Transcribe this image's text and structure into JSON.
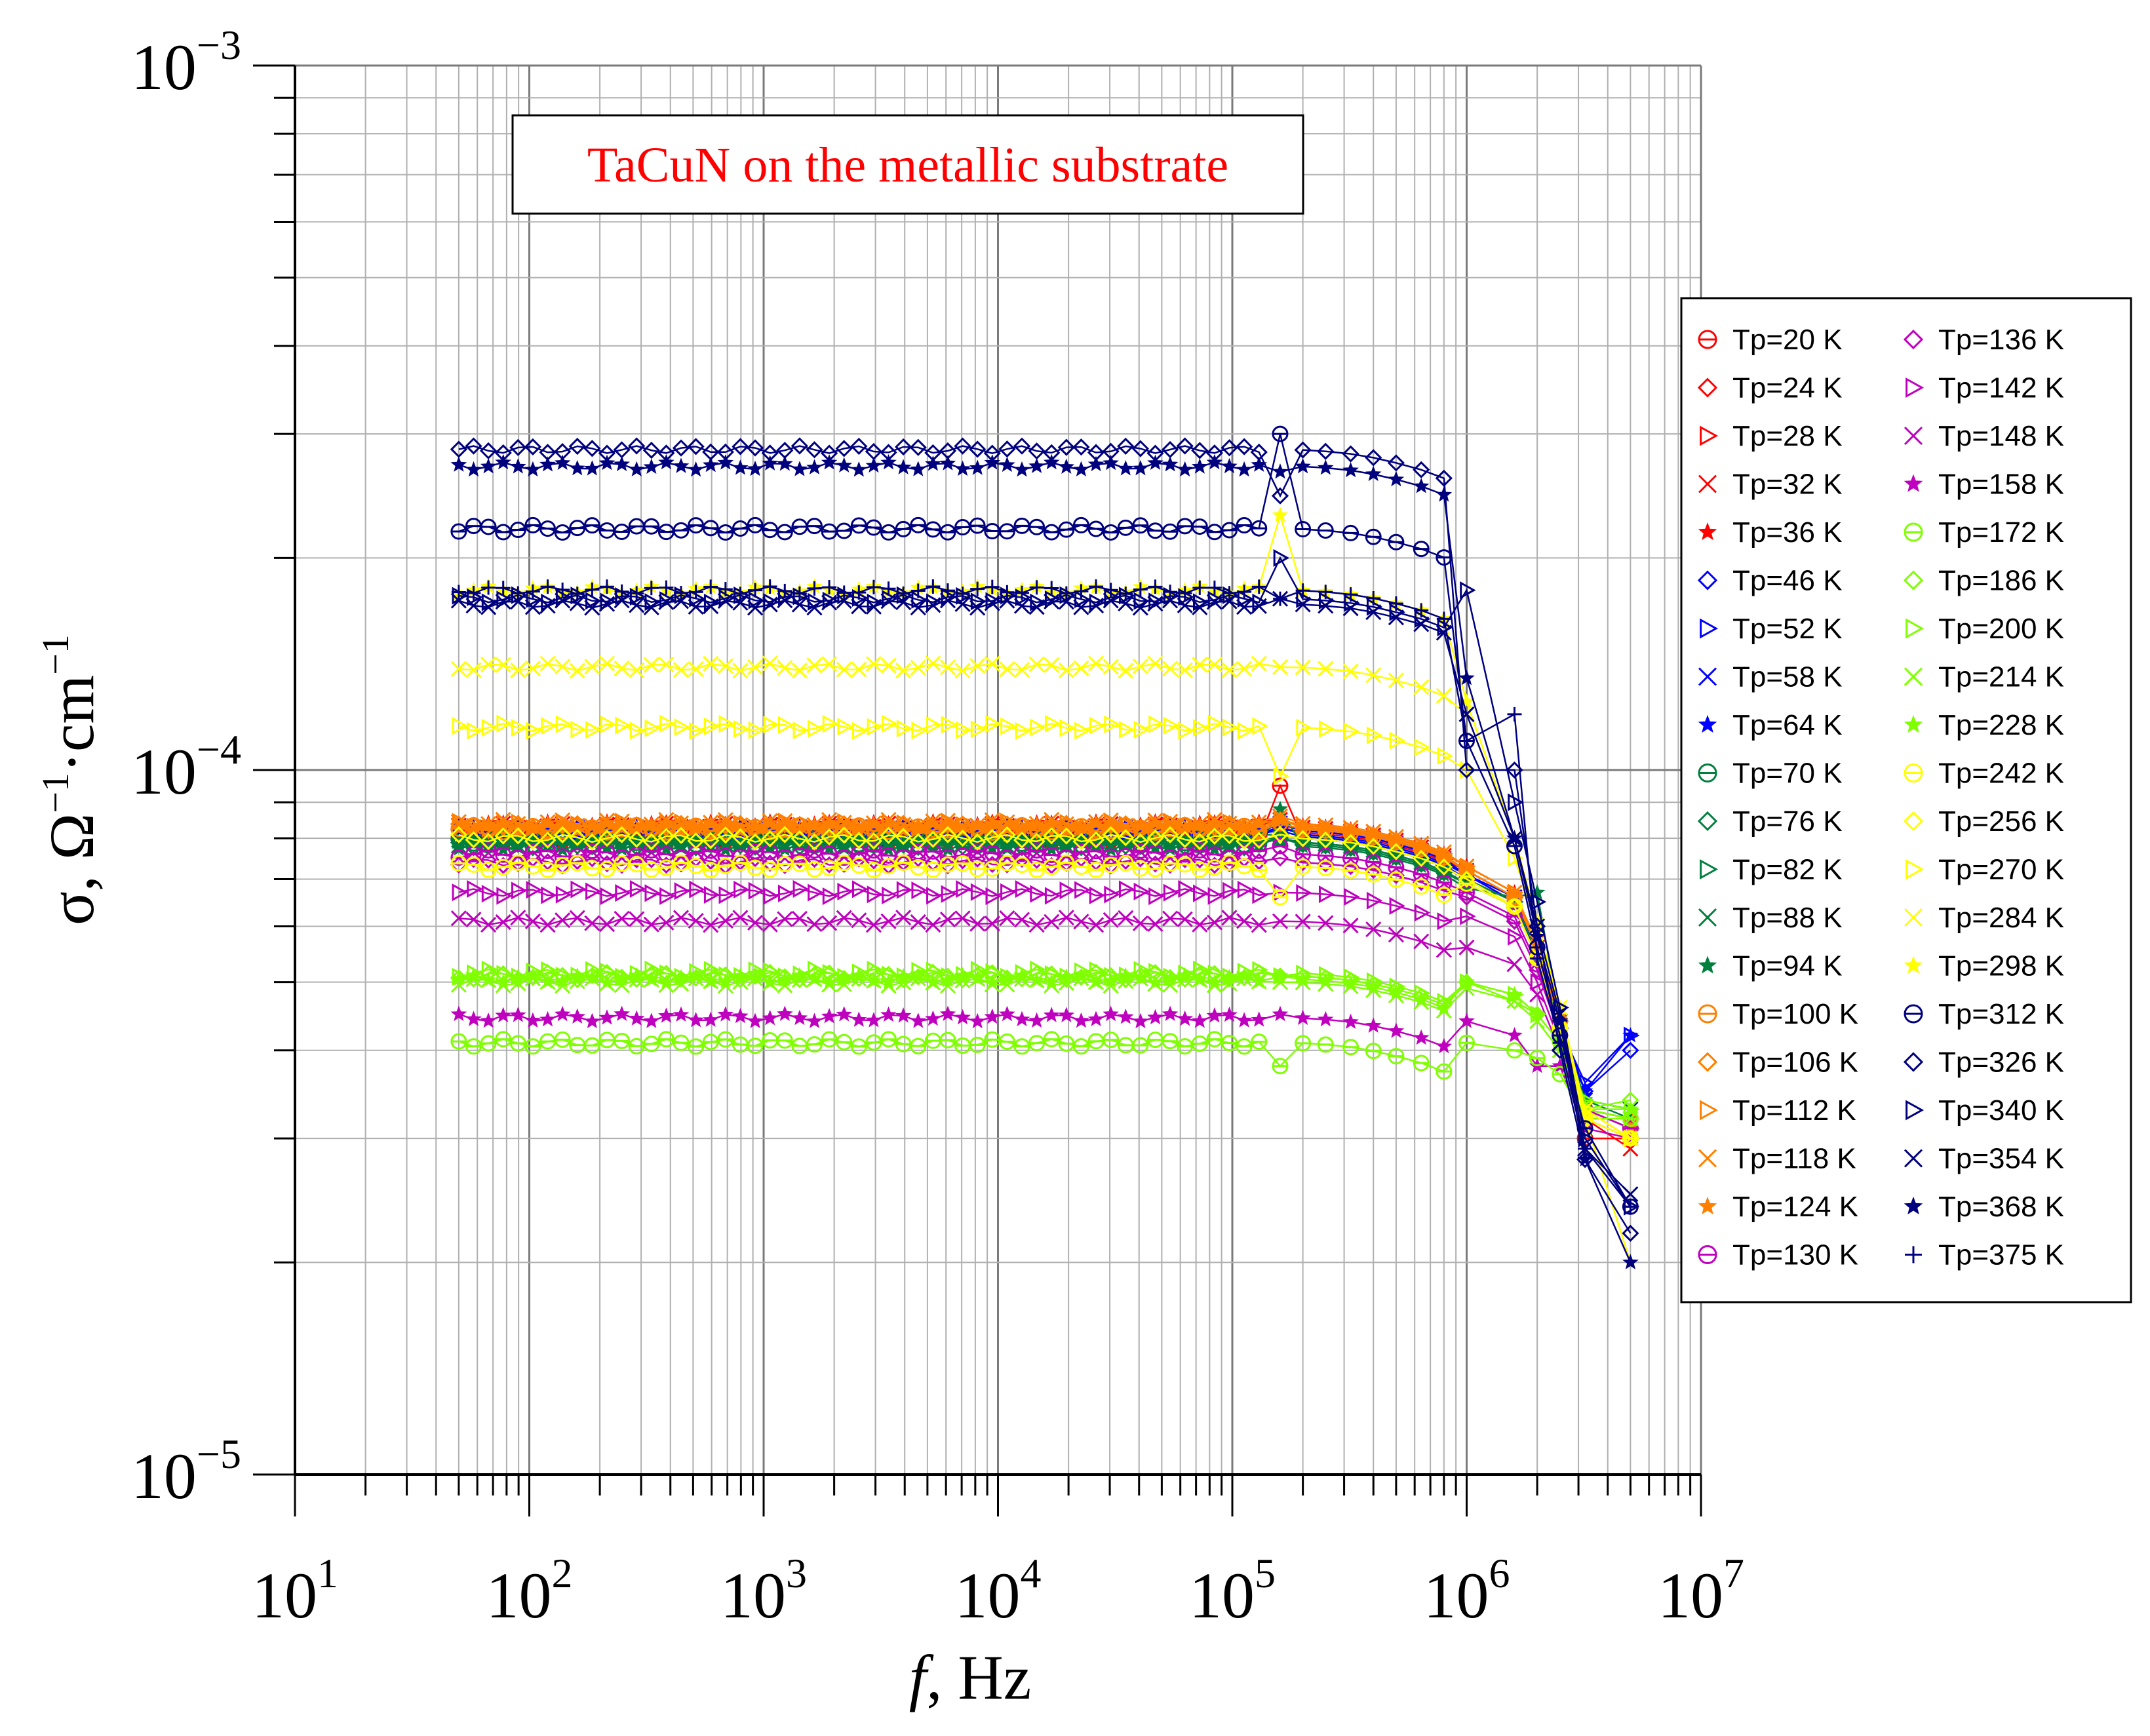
{
  "chart_data": {
    "type": "line",
    "title": "",
    "annotation": "TaCuN on the metallic substrate",
    "annotation_color": "#ff0000",
    "xlabel_italic": "f",
    "xlabel_rest": ", Hz",
    "ylabel_prefix": "σ, Ω",
    "ylabel_exp1": "−1",
    "ylabel_mid": "·cm",
    "ylabel_exp2": "−1",
    "x_scale": "log",
    "y_scale": "log",
    "xlim": [
      10,
      10000000
    ],
    "ylim": [
      1e-05,
      0.001
    ],
    "grid": true,
    "legend_position": "right",
    "legend_columns": 2,
    "x_ticks": [
      {
        "value": 10,
        "base": "10",
        "exp": "1"
      },
      {
        "value": 100,
        "base": "10",
        "exp": "2"
      },
      {
        "value": 1000,
        "base": "10",
        "exp": "3"
      },
      {
        "value": 10000,
        "base": "10",
        "exp": "4"
      },
      {
        "value": 100000,
        "base": "10",
        "exp": "5"
      },
      {
        "value": 1000000,
        "base": "10",
        "exp": "6"
      },
      {
        "value": 10000000,
        "base": "10",
        "exp": "7"
      }
    ],
    "y_ticks": [
      {
        "value": 1e-05,
        "base": "10",
        "exp": "−5"
      },
      {
        "value": 0.0001,
        "base": "10",
        "exp": "−4"
      },
      {
        "value": 0.001,
        "base": "10",
        "exp": "−3"
      }
    ],
    "series": [
      {
        "name": "Tp=20 K",
        "color": "#ff0000",
        "marker": "circle-line",
        "plateau": 8e-05,
        "resonance": 9.5e-05,
        "tail": [
          7e-05,
          6.4e-05,
          5.4e-05,
          4.2e-05,
          3e-05,
          3e-05
        ]
      },
      {
        "name": "Tp=24 K",
        "color": "#ff0000",
        "marker": "diamond",
        "plateau": 8.15e-05,
        "resonance": 8.3e-05,
        "tail": [
          7.1e-05,
          6.5e-05,
          5.5e-05,
          4.2e-05,
          3.2e-05,
          3e-05
        ]
      },
      {
        "name": "Tp=28 K",
        "color": "#ff0000",
        "marker": "triangle-right",
        "plateau": 8.2e-05,
        "resonance": 8.4e-05,
        "tail": [
          7.2e-05,
          6.6e-05,
          5.5e-05,
          4.3e-05,
          3.3e-05,
          3.1e-05
        ]
      },
      {
        "name": "Tp=32 K",
        "color": "#ff0000",
        "marker": "x",
        "plateau": 8.3e-05,
        "resonance": 8.5e-05,
        "tail": [
          7.2e-05,
          6.6e-05,
          5.6e-05,
          4.4e-05,
          3.2e-05,
          2.9e-05
        ]
      },
      {
        "name": "Tp=36 K",
        "color": "#ff0000",
        "marker": "star",
        "plateau": 8.35e-05,
        "resonance": 8.5e-05,
        "tail": [
          7.3e-05,
          6.7e-05,
          5.6e-05,
          4.4e-05,
          3.3e-05,
          3.2e-05
        ]
      },
      {
        "name": "Tp=46 K",
        "color": "#0000ff",
        "marker": "diamond",
        "plateau": 8.05e-05,
        "resonance": 8.2e-05,
        "tail": [
          7e-05,
          6.5e-05,
          5.4e-05,
          4.3e-05,
          3.5e-05,
          4e-05
        ]
      },
      {
        "name": "Tp=52 K",
        "color": "#0000ff",
        "marker": "triangle-right",
        "plateau": 8.1e-05,
        "resonance": 8.3e-05,
        "tail": [
          7.1e-05,
          6.5e-05,
          5.5e-05,
          4.3e-05,
          3.6e-05,
          4.2e-05
        ]
      },
      {
        "name": "Tp=58 K",
        "color": "#0000ff",
        "marker": "x",
        "plateau": 8.2e-05,
        "resonance": 8.4e-05,
        "tail": [
          7.1e-05,
          6.6e-05,
          5.5e-05,
          4.4e-05,
          3.4e-05,
          3.3e-05
        ]
      },
      {
        "name": "Tp=64 K",
        "color": "#0000ff",
        "marker": "star",
        "plateau": 8.25e-05,
        "resonance": 8.4e-05,
        "tail": [
          7.2e-05,
          6.6e-05,
          5.6e-05,
          4.4e-05,
          3.5e-05,
          4.2e-05
        ]
      },
      {
        "name": "Tp=70 K",
        "color": "#007f3f",
        "marker": "circle-line",
        "plateau": 7.9e-05,
        "resonance": 8e-05,
        "tail": [
          6.9e-05,
          6.4e-05,
          5.4e-05,
          4.3e-05,
          3.3e-05,
          3.1e-05
        ]
      },
      {
        "name": "Tp=76 K",
        "color": "#007f3f",
        "marker": "diamond",
        "plateau": 7.85e-05,
        "resonance": 8e-05,
        "tail": [
          6.9e-05,
          6.4e-05,
          5.4e-05,
          4.3e-05,
          3.3e-05,
          3.2e-05
        ]
      },
      {
        "name": "Tp=82 K",
        "color": "#007f3f",
        "marker": "triangle-right",
        "plateau": 8e-05,
        "resonance": 8.1e-05,
        "tail": [
          7e-05,
          6.5e-05,
          5.5e-05,
          4.3e-05,
          3.4e-05,
          3.3e-05
        ]
      },
      {
        "name": "Tp=88 K",
        "color": "#007f3f",
        "marker": "x",
        "plateau": 7.9e-05,
        "resonance": 8e-05,
        "tail": [
          6.9e-05,
          6.4e-05,
          5.4e-05,
          4.3e-05,
          3.3e-05,
          3.1e-05
        ]
      },
      {
        "name": "Tp=94 K",
        "color": "#007f3f",
        "marker": "star",
        "plateau": 7.8e-05,
        "resonance": 8.8e-05,
        "tail": [
          6.8e-05,
          6.6e-05,
          6.7e-05,
          4.4e-05,
          3.4e-05,
          3.2e-05
        ]
      },
      {
        "name": "Tp=100 K",
        "color": "#ff7f00",
        "marker": "circle-line",
        "plateau": 8.25e-05,
        "resonance": 8.4e-05,
        "tail": [
          7.2e-05,
          6.6e-05,
          5.6e-05,
          4.4e-05,
          3.3e-05,
          3.1e-05
        ]
      },
      {
        "name": "Tp=106 K",
        "color": "#ff7f00",
        "marker": "diamond",
        "plateau": 8.3e-05,
        "resonance": 8.5e-05,
        "tail": [
          7.2e-05,
          6.6e-05,
          5.6e-05,
          4.4e-05,
          3.3e-05,
          3.2e-05
        ]
      },
      {
        "name": "Tp=112 K",
        "color": "#ff7f00",
        "marker": "triangle-right",
        "plateau": 8.35e-05,
        "resonance": 8.5e-05,
        "tail": [
          7.3e-05,
          6.7e-05,
          5.6e-05,
          4.4e-05,
          3.3e-05,
          3e-05
        ]
      },
      {
        "name": "Tp=118 K",
        "color": "#ff7f00",
        "marker": "x",
        "plateau": 8.4e-05,
        "resonance": 8.6e-05,
        "tail": [
          7.3e-05,
          6.7e-05,
          5.7e-05,
          4.5e-05,
          3.3e-05,
          3.2e-05
        ]
      },
      {
        "name": "Tp=124 K",
        "color": "#ff7f00",
        "marker": "star",
        "plateau": 8.3e-05,
        "resonance": 8.5e-05,
        "tail": [
          7.2e-05,
          6.6e-05,
          5.6e-05,
          4.4e-05,
          3.3e-05,
          3.1e-05
        ]
      },
      {
        "name": "Tp=130 K",
        "color": "#bf00bf",
        "marker": "circle-line",
        "plateau": 7.6e-05,
        "resonance": 7.8e-05,
        "tail": [
          6.7e-05,
          6.2e-05,
          5.3e-05,
          4.2e-05,
          3.3e-05,
          3.1e-05
        ]
      },
      {
        "name": "Tp=136 K",
        "color": "#bf00bf",
        "marker": "diamond",
        "plateau": 7.4e-05,
        "resonance": 7.5e-05,
        "tail": [
          6.6e-05,
          6.1e-05,
          5.2e-05,
          4.2e-05,
          3.3e-05,
          3e-05
        ]
      },
      {
        "name": "Tp=142 K",
        "color": "#bf00bf",
        "marker": "triangle-right",
        "plateau": 6.7e-05,
        "resonance": 6.7e-05,
        "tail": [
          6.2e-05,
          5.8e-05,
          5e-05,
          4.1e-05,
          3.2e-05,
          3e-05
        ]
      },
      {
        "name": "Tp=148 K",
        "color": "#bf00bf",
        "marker": "x",
        "plateau": 6.1e-05,
        "resonance": 6.1e-05,
        "tail": [
          5.6e-05,
          5.3e-05,
          4.8e-05,
          4e-05,
          3.2e-05,
          3e-05
        ]
      },
      {
        "name": "Tp=158 K",
        "color": "#bf00bf",
        "marker": "star",
        "plateau": 4.45e-05,
        "resonance": 4.5e-05,
        "tail": [
          4.4e-05,
          4.2e-05,
          3.8e-05,
          3.8e-05,
          3.1e-05,
          3e-05
        ]
      },
      {
        "name": "Tp=172 K",
        "color": "#7fff00",
        "marker": "circle-line",
        "plateau": 4.1e-05,
        "resonance": 3.8e-05,
        "tail": [
          4.1e-05,
          4e-05,
          3.9e-05,
          3.7e-05,
          3.2e-05,
          3.2e-05
        ]
      },
      {
        "name": "Tp=186 K",
        "color": "#7fff00",
        "marker": "diamond",
        "plateau": 5.1e-05,
        "resonance": 5.1e-05,
        "tail": [
          5e-05,
          4.7e-05,
          4.5e-05,
          4.1e-05,
          3.3e-05,
          3.4e-05
        ]
      },
      {
        "name": "Tp=200 K",
        "color": "#7fff00",
        "marker": "triangle-right",
        "plateau": 5.15e-05,
        "resonance": 5.1e-05,
        "tail": [
          5e-05,
          4.8e-05,
          4.5e-05,
          4.1e-05,
          3.4e-05,
          3.3e-05
        ]
      },
      {
        "name": "Tp=214 K",
        "color": "#7fff00",
        "marker": "x",
        "plateau": 5e-05,
        "resonance": 5e-05,
        "tail": [
          4.9e-05,
          4.7e-05,
          4.4e-05,
          4e-05,
          3.3e-05,
          3.2e-05
        ]
      },
      {
        "name": "Tp=228 K",
        "color": "#7fff00",
        "marker": "star",
        "plateau": 5.05e-05,
        "resonance": 5.1e-05,
        "tail": [
          5e-05,
          4.8e-05,
          4.5e-05,
          4.1e-05,
          3.3e-05,
          3.3e-05
        ]
      },
      {
        "name": "Tp=242 K",
        "color": "#ffff00",
        "marker": "circle-line",
        "plateau": 7.3e-05,
        "resonance": 6.6e-05,
        "tail": [
          6.9e-05,
          6.4e-05,
          5.4e-05,
          4.3e-05,
          3.2e-05,
          3e-05
        ]
      },
      {
        "name": "Tp=256 K",
        "color": "#ffff00",
        "marker": "diamond",
        "plateau": 8e-05,
        "resonance": 8.1e-05,
        "tail": [
          7e-05,
          6.4e-05,
          5.4e-05,
          4.3e-05,
          3.2e-05,
          3e-05
        ]
      },
      {
        "name": "Tp=270 K",
        "color": "#ffff00",
        "marker": "triangle-right",
        "plateau": 0.000115,
        "resonance": 9.8e-05,
        "tail": [
          0.0001,
          7.5e-05,
          6e-05,
          4.6e-05,
          3.3e-05,
          3e-05
        ]
      },
      {
        "name": "Tp=284 K",
        "color": "#ffff00",
        "marker": "x",
        "plateau": 0.00014,
        "resonance": 0.00014,
        "tail": [
          0.00012,
          8e-05,
          6e-05,
          4.6e-05,
          3.3e-05,
          3e-05
        ]
      },
      {
        "name": "Tp=298 K",
        "color": "#ffff00",
        "marker": "star",
        "plateau": 0.00018,
        "resonance": 0.00023,
        "tail": [
          0.000125,
          8e-05,
          6.1e-05,
          4.6e-05,
          3.2e-05,
          2e-05
        ]
      },
      {
        "name": "Tp=312 K",
        "color": "#00007f",
        "marker": "circle-line",
        "plateau": 0.00022,
        "resonance": 0.0003,
        "tail": [
          0.00011,
          7.8e-05,
          5.6e-05,
          4.2e-05,
          3.1e-05,
          2.4e-05
        ]
      },
      {
        "name": "Tp=326 K",
        "color": "#00007f",
        "marker": "diamond",
        "plateau": 0.000285,
        "resonance": 0.000245,
        "tail": [
          0.0001,
          0.0001,
          6e-05,
          4e-05,
          2.8e-05,
          2.2e-05
        ]
      },
      {
        "name": "Tp=340 K",
        "color": "#00007f",
        "marker": "triangle-right",
        "plateau": 0.000175,
        "resonance": 0.0002,
        "tail": [
          0.00018,
          9e-05,
          6.5e-05,
          4.6e-05,
          3e-05,
          2.4e-05
        ]
      },
      {
        "name": "Tp=354 K",
        "color": "#00007f",
        "marker": "x",
        "plateau": 0.000172,
        "resonance": 0.000175,
        "tail": [
          0.00012,
          8e-05,
          6e-05,
          4.5e-05,
          2.9e-05,
          2.5e-05
        ]
      },
      {
        "name": "Tp=368 K",
        "color": "#00007f",
        "marker": "star",
        "plateau": 0.00027,
        "resonance": 0.000265,
        "tail": [
          0.000135,
          8e-05,
          5.8e-05,
          4.4e-05,
          2.8e-05,
          2e-05
        ]
      },
      {
        "name": "Tp=375 K",
        "color": "#00007f",
        "marker": "plus",
        "plateau": 0.00018,
        "resonance": 0.000175,
        "tail": [
          0.00011,
          0.00012,
          5.4e-05,
          4.1e-05,
          2.9e-05,
          2.4e-05
        ]
      }
    ]
  }
}
